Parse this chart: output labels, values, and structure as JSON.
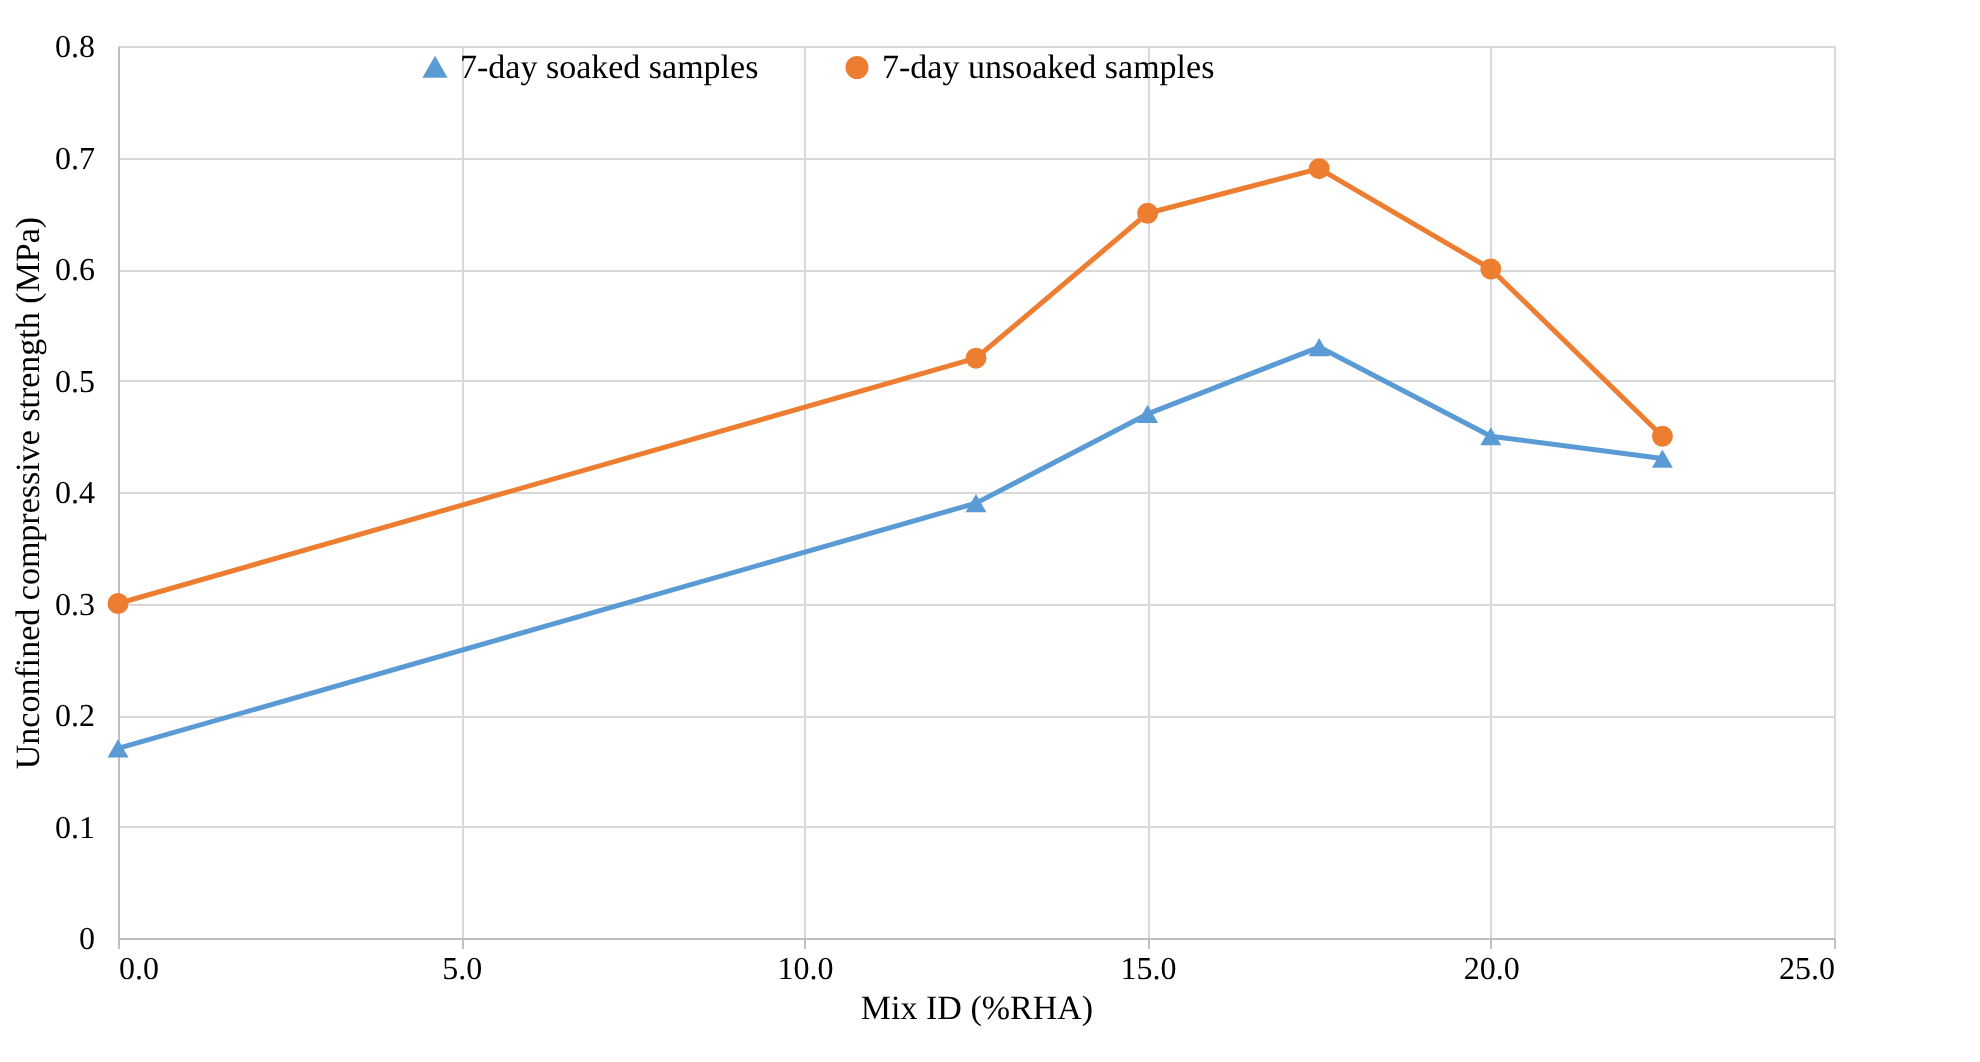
{
  "chart_data": {
    "type": "line",
    "xlabel": "Mix ID (%RHA)",
    "ylabel": "Unconfined compressive strength (MPa)",
    "x": [
      0,
      12.5,
      15,
      17.5,
      20,
      22.5
    ],
    "series": [
      {
        "name": "7-day soaked samples",
        "color": "#5b9bd5",
        "marker": "triangle",
        "values": [
          0.17,
          0.39,
          0.47,
          0.53,
          0.45,
          0.43
        ]
      },
      {
        "name": "7-day unsoaked samples",
        "color": "#ed7d31",
        "marker": "circle",
        "values": [
          0.3,
          0.52,
          0.65,
          0.69,
          0.6,
          0.45
        ]
      }
    ],
    "xlim": [
      0,
      25
    ],
    "xticks": [
      {
        "value": 0,
        "label": "0.0"
      },
      {
        "value": 5,
        "label": "5.0"
      },
      {
        "value": 10,
        "label": "10.0"
      },
      {
        "value": 15,
        "label": "15.0"
      },
      {
        "value": 20,
        "label": "20.0"
      },
      {
        "value": 25,
        "label": "25.0"
      }
    ],
    "ylim": [
      0,
      0.8
    ],
    "yticks": [
      0,
      0.1,
      0.2,
      0.3,
      0.4,
      0.5,
      0.6,
      0.7,
      0.8
    ],
    "grid": true,
    "legend": "top",
    "line_style": "solid"
  }
}
